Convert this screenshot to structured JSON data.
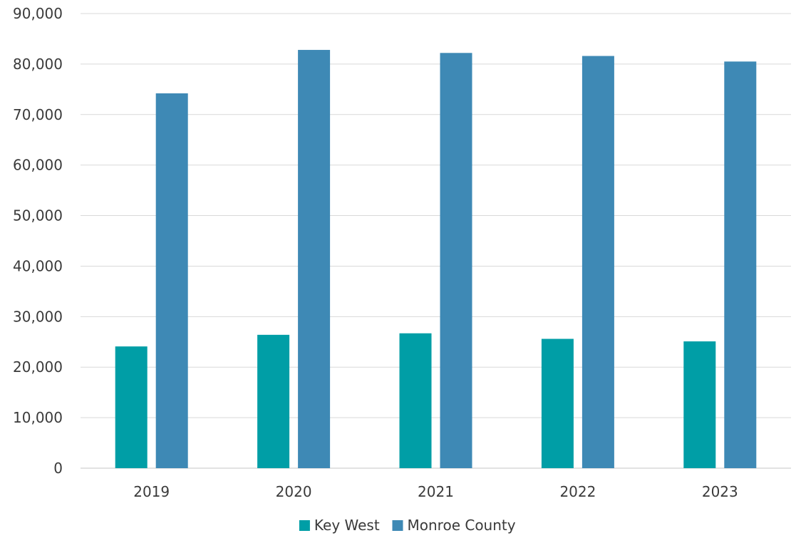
{
  "chart_data": {
    "type": "bar",
    "categories": [
      "2019",
      "2020",
      "2021",
      "2022",
      "2023"
    ],
    "series": [
      {
        "name": "Key West",
        "color": "#009ea6",
        "values": [
          24100,
          26400,
          26700,
          25600,
          25100
        ]
      },
      {
        "name": "Monroe County",
        "color": "#3e89b5",
        "values": [
          74200,
          82800,
          82200,
          81600,
          80500
        ]
      }
    ],
    "ylim": [
      0,
      90000
    ],
    "yticks": [
      "0",
      "10,000",
      "20,000",
      "30,000",
      "40,000",
      "50,000",
      "60,000",
      "70,000",
      "80,000",
      "90,000"
    ],
    "grid": true,
    "legend_position": "bottom"
  }
}
